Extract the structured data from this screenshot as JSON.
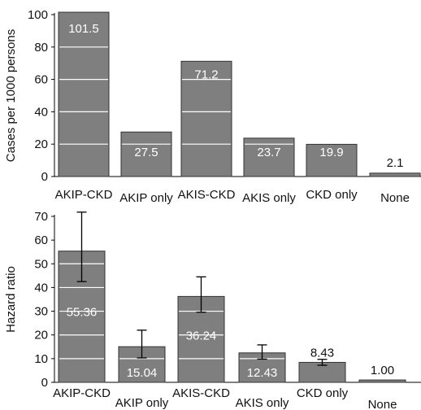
{
  "chart_data": [
    {
      "type": "bar",
      "categories": [
        "AKIP-CKD",
        "AKIP only",
        "AKIS-CKD",
        "AKIS only",
        "CKD only",
        "None"
      ],
      "values": [
        101.5,
        27.5,
        71.2,
        23.7,
        19.9,
        2.1
      ],
      "value_labels": [
        "101.5",
        "27.5",
        "71.2",
        "23.7",
        "19.9",
        "2.1"
      ],
      "title": "",
      "xlabel": "",
      "ylabel": "Cases per 1000 persons",
      "ylim": [
        0,
        100
      ],
      "yticks": [
        0,
        20,
        40,
        60,
        80,
        100
      ],
      "grid": "white lines inside bars at y-ticks",
      "legend": "none",
      "bar_color": "#7f7f7f"
    },
    {
      "type": "bar",
      "categories": [
        "AKIP-CKD",
        "AKIP only",
        "AKIS-CKD",
        "AKIS only",
        "CKD only",
        "None"
      ],
      "values": [
        55.36,
        15.04,
        36.24,
        12.43,
        8.43,
        1.0
      ],
      "value_labels": [
        "55.36",
        "15.04",
        "36.24",
        "12.43",
        "8.43",
        "1.00"
      ],
      "error_low": [
        42.5,
        10.3,
        29.6,
        9.8,
        7.2,
        null
      ],
      "error_high": [
        71.8,
        22.0,
        44.5,
        15.8,
        9.7,
        null
      ],
      "title": "",
      "xlabel": "",
      "ylabel": "Hazard ratio",
      "ylim": [
        0,
        70
      ],
      "yticks": [
        0,
        10,
        20,
        30,
        40,
        50,
        60,
        70
      ],
      "grid": "white lines inside bars at y-ticks",
      "legend": "none",
      "bar_color": "#7f7f7f"
    }
  ]
}
